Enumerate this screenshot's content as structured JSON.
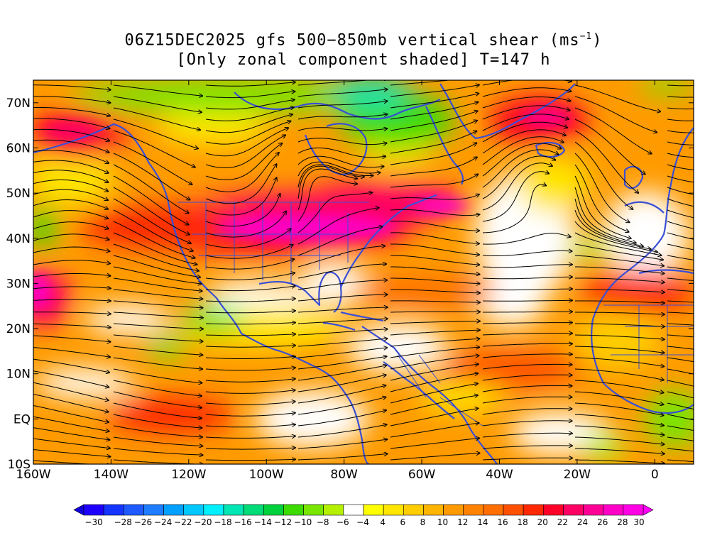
{
  "title": {
    "line1_prefix": "06Z15DEC2025 gfs 500−850mb vertical shear (ms",
    "line1_sup": "−1",
    "line1_suffix": ")",
    "line2": "[Only zonal component shaded] T=147 h"
  },
  "map": {
    "projection": "cylindrical",
    "lon_range": [
      -160,
      10
    ],
    "lat_range": [
      -10,
      75
    ],
    "lat_labels": [
      "70N",
      "60N",
      "50N",
      "40N",
      "30N",
      "20N",
      "10N",
      "EQ",
      "10S"
    ],
    "lat_values": [
      70,
      60,
      50,
      40,
      30,
      20,
      10,
      0,
      -10
    ],
    "lon_labels": [
      "160W",
      "140W",
      "120W",
      "100W",
      "80W",
      "60W",
      "40W",
      "20W",
      "0"
    ],
    "lon_values": [
      -160,
      -140,
      -120,
      -100,
      -80,
      -60,
      -40,
      -20,
      0
    ],
    "coastline_color": "#3a4fd6",
    "streamline_color": "#000000"
  },
  "colorbar": {
    "labels": [
      "-30",
      "-28",
      "-26",
      "-24",
      "-22",
      "-20",
      "-18",
      "-16",
      "-14",
      "-12",
      "-10",
      "-8",
      "-6",
      "-4",
      "4",
      "6",
      "8",
      "10",
      "12",
      "14",
      "16",
      "18",
      "20",
      "22",
      "24",
      "26",
      "28",
      "30"
    ],
    "colors": [
      "#1e00ff",
      "#1434ff",
      "#1e5aff",
      "#1e7dff",
      "#00a0ff",
      "#00c8ff",
      "#00f0ff",
      "#00e6b4",
      "#00dc78",
      "#00d23c",
      "#3cdc00",
      "#78e600",
      "#b4f000",
      "#ffffff",
      "#ffff00",
      "#ffe600",
      "#ffcd00",
      "#ffb400",
      "#ff9b00",
      "#ff8200",
      "#ff6e00",
      "#ff5000",
      "#ff2800",
      "#ff0028",
      "#ff0064",
      "#ff0096",
      "#ff00c8",
      "#ff00e6"
    ],
    "under_color": "#1000e0",
    "over_color": "#ff00ff"
  }
}
